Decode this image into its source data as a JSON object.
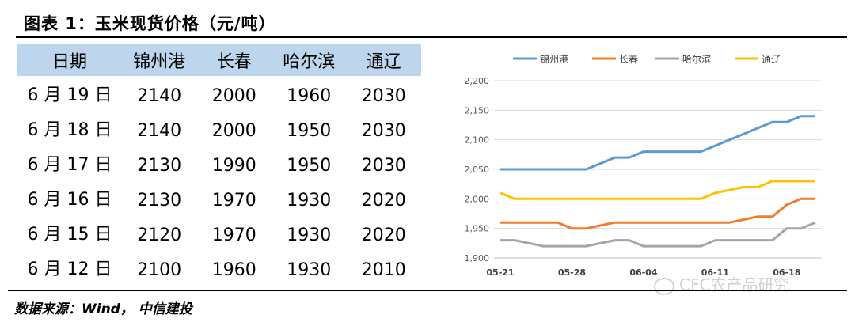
{
  "title": "图表 1：玉米现货价格（元/吨）",
  "source": "数据来源：Wind， 中信建投",
  "watermark": "CFC农产品研究",
  "table": {
    "headers": [
      "日期",
      "锦州港",
      "长春",
      "哈尔滨",
      "通辽"
    ],
    "rows": [
      [
        "6 月 19 日",
        "2140",
        "2000",
        "1960",
        "2030"
      ],
      [
        "6 月 18 日",
        "2140",
        "2000",
        "1950",
        "2030"
      ],
      [
        "6 月 17 日",
        "2130",
        "1990",
        "1950",
        "2030"
      ],
      [
        "6 月 16 日",
        "2130",
        "1970",
        "1930",
        "2020"
      ],
      [
        "6 月 15 日",
        "2120",
        "1970",
        "1930",
        "2020"
      ],
      [
        "6 月 12 日",
        "2100",
        "1960",
        "1930",
        "2010"
      ]
    ]
  },
  "chart_data": {
    "type": "line",
    "x_tick_labels": [
      "05-21",
      "05-28",
      "06-04",
      "06-11",
      "06-18"
    ],
    "x_tick_index": [
      0,
      5,
      10,
      15,
      20
    ],
    "ylim": [
      1900,
      2200
    ],
    "y_ticks": [
      "1,900",
      "1,950",
      "2,000",
      "2,050",
      "2,100",
      "2,150",
      "2,200"
    ],
    "legend_position": "top",
    "grid": true,
    "series": [
      {
        "name": "锦州港",
        "color": "#5b9bd5",
        "values": [
          2050,
          2050,
          2050,
          2050,
          2050,
          2050,
          2050,
          2060,
          2070,
          2070,
          2080,
          2080,
          2080,
          2080,
          2080,
          2090,
          2100,
          2110,
          2120,
          2130,
          2130,
          2140,
          2140
        ]
      },
      {
        "name": "长春",
        "color": "#ed7d31",
        "values": [
          1960,
          1960,
          1960,
          1960,
          1960,
          1950,
          1950,
          1955,
          1960,
          1960,
          1960,
          1960,
          1960,
          1960,
          1960,
          1960,
          1960,
          1965,
          1970,
          1970,
          1990,
          2000,
          2000
        ]
      },
      {
        "name": "哈尔滨",
        "color": "#a5a5a5",
        "values": [
          1930,
          1930,
          1925,
          1920,
          1920,
          1920,
          1920,
          1925,
          1930,
          1930,
          1920,
          1920,
          1920,
          1920,
          1920,
          1930,
          1930,
          1930,
          1930,
          1930,
          1950,
          1950,
          1960
        ]
      },
      {
        "name": "通辽",
        "color": "#ffc000",
        "values": [
          2010,
          2000,
          2000,
          2000,
          2000,
          2000,
          2000,
          2000,
          2000,
          2000,
          2000,
          2000,
          2000,
          2000,
          2000,
          2010,
          2015,
          2020,
          2020,
          2030,
          2030,
          2030,
          2030
        ]
      }
    ]
  }
}
